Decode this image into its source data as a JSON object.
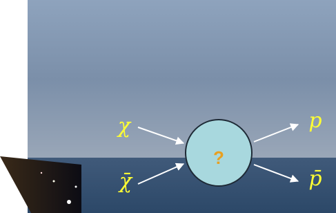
{
  "diagram": {
    "incoming": [
      "χ",
      "χ̄"
    ],
    "outgoing": [
      "p",
      "p̄"
    ],
    "vertex": "?"
  }
}
